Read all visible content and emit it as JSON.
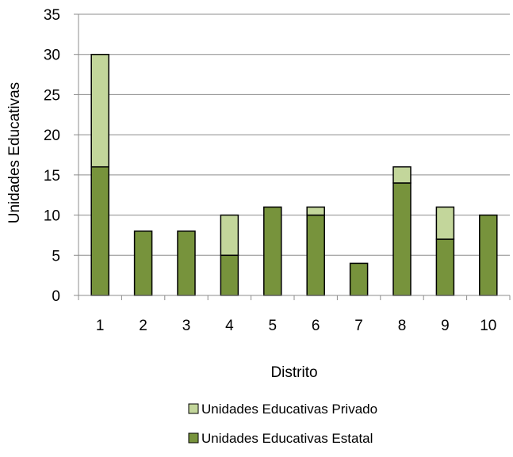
{
  "chart_data": {
    "type": "bar",
    "stacked": true,
    "categories": [
      "1",
      "2",
      "3",
      "4",
      "5",
      "6",
      "7",
      "8",
      "9",
      "10"
    ],
    "series": [
      {
        "name": "Unidades Educativas Estatal",
        "values": [
          16,
          8,
          8,
          5,
          11,
          10,
          4,
          14,
          7,
          10
        ],
        "color": "#77933c"
      },
      {
        "name": "Unidades Educativas Privado",
        "values": [
          14,
          0,
          0,
          5,
          0,
          1,
          0,
          2,
          4,
          0
        ],
        "color": "#c3d69b"
      }
    ],
    "xlabel": "Distrito",
    "ylabel": "Unidades Educativas",
    "ylim": [
      0,
      35
    ],
    "yticks": [
      "0",
      "5",
      "10",
      "15",
      "20",
      "25",
      "30",
      "35"
    ],
    "grid": true,
    "legend_position": "bottom"
  }
}
